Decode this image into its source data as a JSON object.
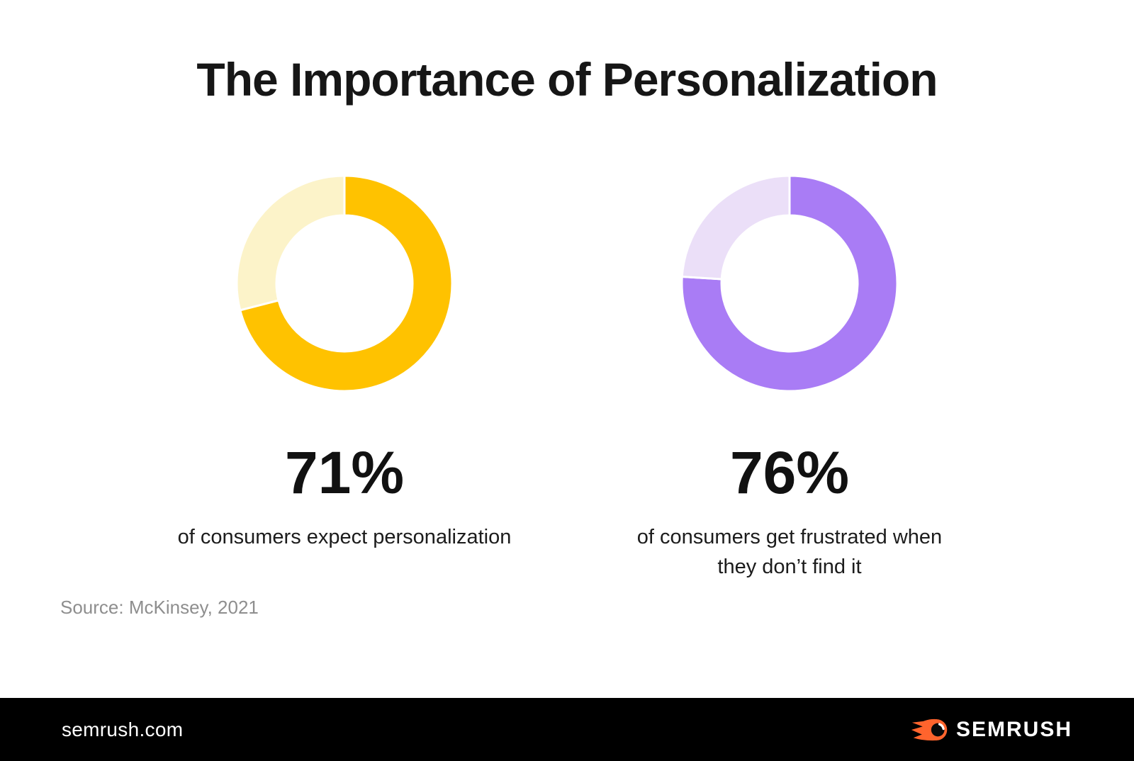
{
  "page": {
    "title": "The Importance of Personalization",
    "source_note": "Source: McKinsey, 2021",
    "background_color": "#ffffff",
    "title_color": "#161616"
  },
  "chart_data": [
    {
      "type": "pie",
      "subtype": "donut",
      "value_label": "71%",
      "caption_lines": [
        "of consumers expect personalization"
      ],
      "slices": [
        {
          "value": 71,
          "color": "#FFC200"
        },
        {
          "value": 29,
          "color": "#FCF3C9"
        }
      ],
      "start_angle_deg": 0,
      "direction": "clockwise",
      "inner_radius_ratio": 0.63,
      "separator_color": "#ffffff",
      "legend": "none"
    },
    {
      "type": "pie",
      "subtype": "donut",
      "value_label": "76%",
      "caption_lines": [
        "of consumers get frustrated when",
        "they don’t find it"
      ],
      "slices": [
        {
          "value": 76,
          "color": "#A97CF5"
        },
        {
          "value": 24,
          "color": "#EBDFF8"
        }
      ],
      "start_angle_deg": 0,
      "direction": "clockwise",
      "inner_radius_ratio": 0.63,
      "separator_color": "#ffffff",
      "legend": "none"
    }
  ],
  "footer": {
    "background_color": "#000000",
    "website": "semrush.com",
    "brand_name": "SEMRUSH",
    "brand_icon": "semrush-fireball-icon",
    "brand_icon_color": "#FF642D"
  }
}
